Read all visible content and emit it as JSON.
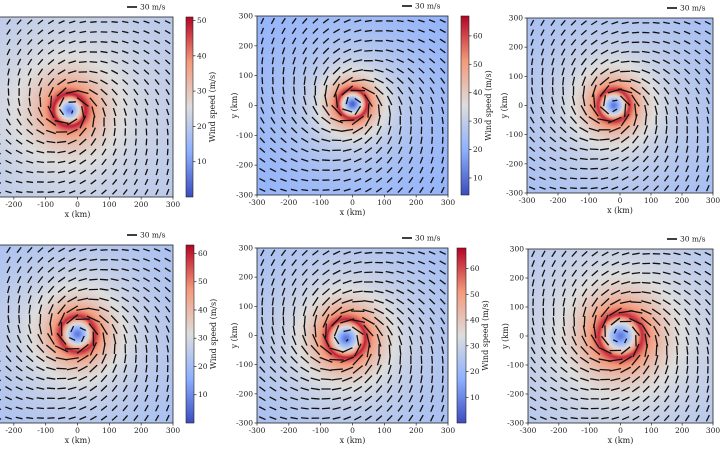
{
  "chart_data": [
    {
      "type": "heatmap",
      "panel": "top-left",
      "x_label": "x (km)",
      "y_label": "",
      "x_ticks": [
        "-200",
        "-100",
        "0",
        "100",
        "200",
        "300"
      ],
      "y_ticks": [],
      "colorbar": {
        "label": "Wind speed (m/s)",
        "range": [
          0,
          51
        ],
        "ticks": [
          "10",
          "20",
          "30",
          "40",
          "50"
        ]
      },
      "scale_label": "30 m/s",
      "vortex_center_km": [
        -25,
        -10
      ],
      "max_wind_ms": 50,
      "radius_max_wind_km": 50,
      "colormap": [
        "#3b4cc0",
        "#8db0fe",
        "#dddddd",
        "#f49a7b",
        "#b40426"
      ]
    },
    {
      "type": "heatmap",
      "panel": "top-middle",
      "x_label": "x (km)",
      "y_label": "y (km)",
      "x_ticks": [
        "-300",
        "-200",
        "-100",
        "0",
        "100",
        "200",
        "300"
      ],
      "y_ticks": [
        "-300",
        "-200",
        "-100",
        "0",
        "100",
        "200",
        "300"
      ],
      "colorbar": {
        "label": "Wind speed (m/s)",
        "range": [
          4,
          67
        ],
        "ticks": [
          "10",
          "20",
          "30",
          "40",
          "50",
          "60"
        ]
      },
      "scale_label": "30 m/s",
      "vortex_center_km": [
        0,
        5
      ],
      "max_wind_ms": 65,
      "radius_max_wind_km": 45,
      "colormap": [
        "#3b4cc0",
        "#8db0fe",
        "#dddddd",
        "#f49a7b",
        "#b40426"
      ]
    },
    {
      "type": "heatmap",
      "panel": "top-right",
      "x_label": "x (km)",
      "y_label": "y (km)",
      "x_ticks": [
        "-300",
        "-200",
        "-100",
        "0",
        "100",
        "200",
        "300"
      ],
      "y_ticks": [
        "-300",
        "-200",
        "-100",
        "0",
        "100",
        "200",
        "300"
      ],
      "colorbar": null,
      "scale_label": "30 m/s",
      "vortex_center_km": [
        -20,
        0
      ],
      "max_wind_ms": 60,
      "radius_max_wind_km": 50,
      "colormap": [
        "#3b4cc0",
        "#8db0fe",
        "#dddddd",
        "#f49a7b",
        "#b40426"
      ]
    },
    {
      "type": "heatmap",
      "panel": "bottom-left",
      "x_label": "x (km)",
      "y_label": "",
      "x_ticks": [
        "-200",
        "-100",
        "0",
        "100",
        "200",
        "300"
      ],
      "y_ticks": [],
      "colorbar": {
        "label": "Wind speed (m/s)",
        "range": [
          0,
          63
        ],
        "ticks": [
          "10",
          "20",
          "30",
          "40",
          "50",
          "60"
        ]
      },
      "scale_label": "30 m/s",
      "vortex_center_km": [
        0,
        0
      ],
      "max_wind_ms": 60,
      "radius_max_wind_km": 55,
      "colormap": [
        "#3b4cc0",
        "#8db0fe",
        "#dddddd",
        "#f49a7b",
        "#b40426"
      ]
    },
    {
      "type": "heatmap",
      "panel": "bottom-middle",
      "x_label": "x (km)",
      "y_label": "y (km)",
      "x_ticks": [
        "-300",
        "-200",
        "-100",
        "0",
        "100",
        "200",
        "300"
      ],
      "y_ticks": [
        "-300",
        "-200",
        "-100",
        "0",
        "100",
        "200",
        "300"
      ],
      "colorbar": {
        "label": "Wind speed (m/s)",
        "range": [
          0,
          68
        ],
        "ticks": [
          "10",
          "20",
          "30",
          "40",
          "50",
          "60"
        ]
      },
      "scale_label": "30 m/s",
      "vortex_center_km": [
        -20,
        -10
      ],
      "max_wind_ms": 65,
      "radius_max_wind_km": 60,
      "colormap": [
        "#3b4cc0",
        "#8db0fe",
        "#dddddd",
        "#f49a7b",
        "#b40426"
      ]
    },
    {
      "type": "heatmap",
      "panel": "bottom-right",
      "x_label": "x (km)",
      "y_label": "y (km)",
      "x_ticks": [
        "-300",
        "-200",
        "-100",
        "0",
        "100",
        "200",
        "300"
      ],
      "y_ticks": [
        "-300",
        "-200",
        "-100",
        "0",
        "100",
        "200",
        "300"
      ],
      "colorbar": null,
      "scale_label": "30 m/s",
      "vortex_center_km": [
        0,
        0
      ],
      "max_wind_ms": 55,
      "radius_max_wind_km": 70,
      "colormap": [
        "#3b4cc0",
        "#8db0fe",
        "#dddddd",
        "#f49a7b",
        "#b40426"
      ]
    }
  ]
}
